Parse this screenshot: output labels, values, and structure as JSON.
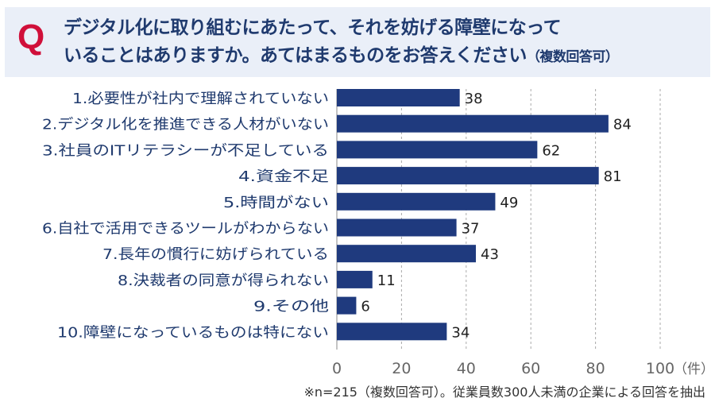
{
  "question": {
    "mark": "Q",
    "line1": "デジタル化に取り組むにあたって、それを妨げる障壁になって",
    "line2": "いることはありますか。あてはまるものをお答えください",
    "suffix": "（複数回答可）"
  },
  "footnote": "※n=215（複数回答可）。従業員数300人未満の企業による回答を抽出",
  "colors": {
    "bar": "#1f3a7e",
    "q": "#d0103a",
    "title": "#1f3a6e"
  },
  "chart_data": {
    "type": "bar",
    "orientation": "horizontal",
    "categories": [
      "1.必要性が社内で理解されていない",
      "2.デジタル化を推進できる人材がいない",
      "3.社員のITリテラシーが不足している",
      "4.資金不足",
      "5.時間がない",
      "6.自社で活用できるツールがわからない",
      "7.長年の慣行に妨げられている",
      "8.決裁者の同意が得られない",
      "9.その他",
      "10.障壁になっているものは特にない"
    ],
    "values": [
      38,
      84,
      62,
      81,
      49,
      37,
      43,
      11,
      6,
      34
    ],
    "xlim": [
      0,
      100
    ],
    "xticks": [
      "0",
      "20",
      "40",
      "60",
      "80",
      "100"
    ],
    "xunit": "（件）",
    "grid": true
  }
}
